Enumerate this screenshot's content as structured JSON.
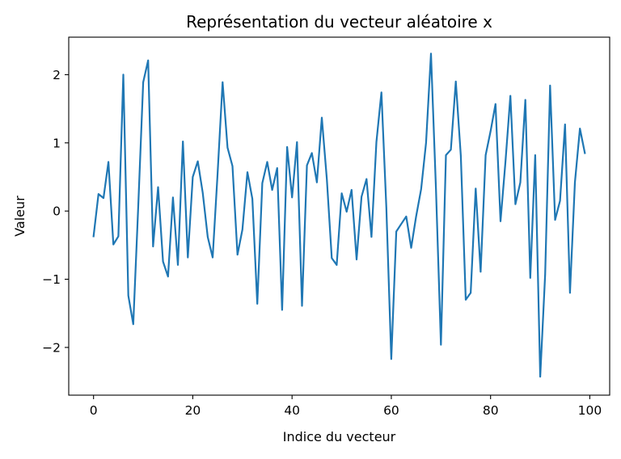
{
  "chart_data": {
    "type": "line",
    "title": "Représentation du vecteur aléatoire x",
    "xlabel": "Indice du vecteur",
    "ylabel": "Valeur",
    "xlim": [
      -5,
      104
    ],
    "ylim": [
      -2.7,
      2.55
    ],
    "xticks": [
      0,
      20,
      40,
      60,
      80,
      100
    ],
    "yticks": [
      -2,
      -1,
      0,
      1,
      2
    ],
    "ytick_labels": [
      "−2",
      "−1",
      "0",
      "1",
      "2"
    ],
    "grid": false,
    "series": [
      {
        "color": "#1f77b4",
        "x": [
          0,
          1,
          2,
          3,
          4,
          5,
          6,
          7,
          8,
          9,
          10,
          11,
          12,
          13,
          14,
          15,
          16,
          17,
          18,
          19,
          20,
          21,
          22,
          23,
          24,
          25,
          26,
          27,
          28,
          29,
          30,
          31,
          32,
          33,
          34,
          35,
          36,
          37,
          38,
          39,
          40,
          41,
          42,
          43,
          44,
          45,
          46,
          47,
          48,
          49,
          50,
          51,
          52,
          53,
          54,
          55,
          56,
          57,
          58,
          59,
          60,
          61,
          62,
          63,
          64,
          65,
          66,
          67,
          68,
          69,
          70,
          71,
          72,
          73,
          74,
          75,
          76,
          77,
          78,
          79,
          80,
          81,
          82,
          83,
          84,
          85,
          86,
          87,
          88,
          89,
          90,
          91,
          92,
          93,
          94,
          95,
          96,
          97,
          98,
          99
        ],
        "values": [
          -0.37,
          0.25,
          0.19,
          0.72,
          -0.49,
          -0.37,
          2.0,
          -1.24,
          -1.66,
          0.05,
          1.89,
          2.21,
          -0.52,
          0.35,
          -0.74,
          -0.96,
          0.2,
          -0.79,
          1.02,
          -0.68,
          0.5,
          0.73,
          0.27,
          -0.38,
          -0.68,
          0.55,
          1.89,
          0.93,
          0.66,
          -0.64,
          -0.27,
          0.57,
          0.18,
          -1.36,
          0.41,
          0.72,
          0.31,
          0.63,
          -1.45,
          0.94,
          0.2,
          1.01,
          -1.39,
          0.67,
          0.85,
          0.42,
          1.37,
          0.47,
          -0.69,
          -0.79,
          0.26,
          -0.01,
          0.31,
          -0.71,
          0.21,
          0.47,
          -0.38,
          1.01,
          1.74,
          0.05,
          -2.17,
          -0.3,
          -0.19,
          -0.08,
          -0.54,
          -0.08,
          0.32,
          1.0,
          2.31,
          0.31,
          -1.96,
          0.82,
          0.9,
          1.9,
          0.81,
          -1.3,
          -1.2,
          0.33,
          -0.89,
          0.82,
          1.17,
          1.57,
          -0.15,
          0.72,
          1.69,
          0.1,
          0.42,
          1.63,
          -0.98,
          0.82,
          -2.43,
          -0.93,
          1.84,
          -0.13,
          0.15,
          1.27,
          -1.2,
          0.42,
          1.21,
          0.85
        ]
      }
    ]
  }
}
